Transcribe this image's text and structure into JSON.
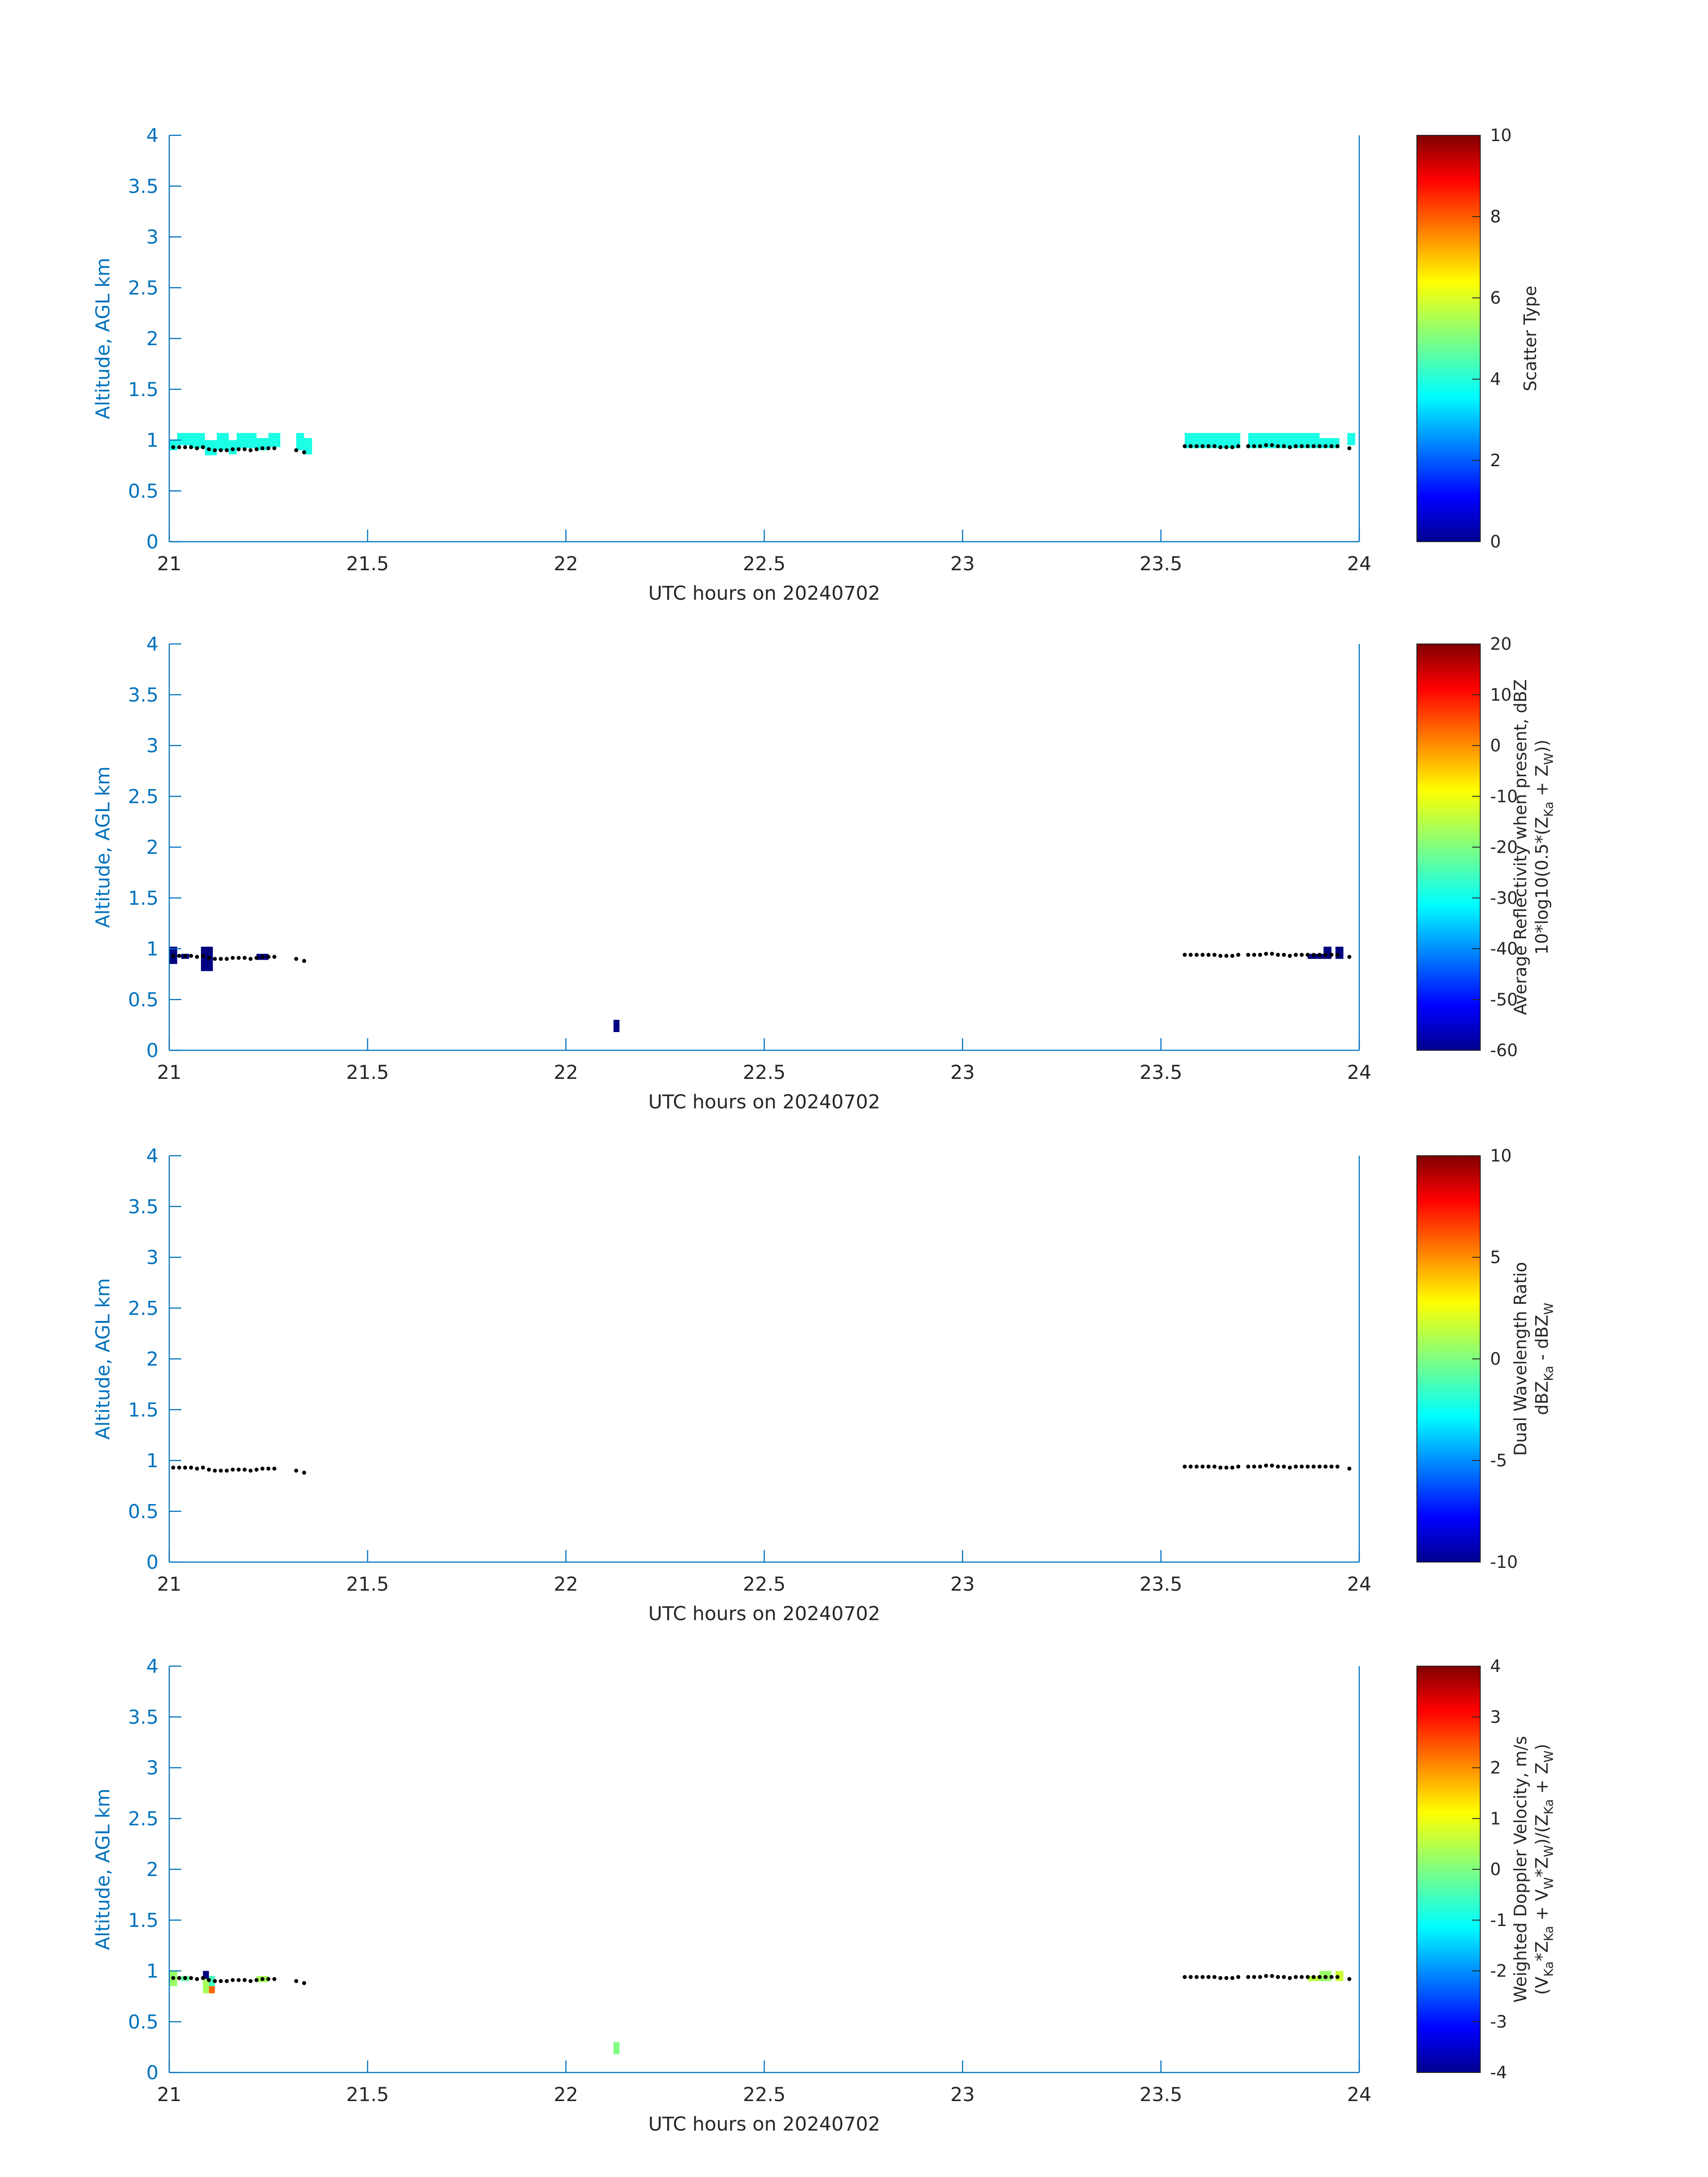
{
  "colors": {
    "axis": "#0072bd",
    "ground_line": "#000000",
    "colorbar_tick_text": "#262626"
  },
  "chart_data": [
    {
      "type": "heatmap",
      "xlabel": "UTC hours on 20240702",
      "ylabel": "Altitude, AGL km",
      "xlim": [
        21,
        24
      ],
      "ylim": [
        0,
        4
      ],
      "xticks": [
        21,
        21.5,
        22,
        22.5,
        23,
        23.5,
        24
      ],
      "yticks": [
        0,
        0.5,
        1,
        1.5,
        2,
        2.5,
        3,
        3.5,
        4
      ],
      "colormap": "jet",
      "colorbar": {
        "label_lines": [
          "Scatter Type"
        ],
        "clim": [
          0,
          10
        ],
        "ticks": [
          0,
          2,
          4,
          6,
          8,
          10
        ]
      },
      "cells": [
        {
          "x0": 21.0,
          "x1": 21.02,
          "y0": 0.9,
          "y1": 1.0,
          "v": 4
        },
        {
          "x0": 21.02,
          "x1": 21.05,
          "y0": 0.95,
          "y1": 1.07,
          "v": 4
        },
        {
          "x0": 21.05,
          "x1": 21.09,
          "y0": 0.92,
          "y1": 1.07,
          "v": 4
        },
        {
          "x0": 21.09,
          "x1": 21.12,
          "y0": 0.85,
          "y1": 1.0,
          "v": 4
        },
        {
          "x0": 21.12,
          "x1": 21.15,
          "y0": 0.9,
          "y1": 1.07,
          "v": 4
        },
        {
          "x0": 21.15,
          "x1": 21.17,
          "y0": 0.86,
          "y1": 1.0,
          "v": 4
        },
        {
          "x0": 21.17,
          "x1": 21.22,
          "y0": 0.92,
          "y1": 1.07,
          "v": 4
        },
        {
          "x0": 21.22,
          "x1": 21.25,
          "y0": 0.9,
          "y1": 1.02,
          "v": 4
        },
        {
          "x0": 21.25,
          "x1": 21.28,
          "y0": 0.93,
          "y1": 1.07,
          "v": 4
        },
        {
          "x0": 21.32,
          "x1": 21.34,
          "y0": 0.9,
          "y1": 1.07,
          "v": 4
        },
        {
          "x0": 21.34,
          "x1": 21.36,
          "y0": 0.86,
          "y1": 1.02,
          "v": 4
        },
        {
          "x0": 23.56,
          "x1": 23.7,
          "y0": 0.92,
          "y1": 1.07,
          "v": 4
        },
        {
          "x0": 23.72,
          "x1": 23.9,
          "y0": 0.92,
          "y1": 1.07,
          "v": 4
        },
        {
          "x0": 23.9,
          "x1": 23.95,
          "y0": 0.92,
          "y1": 1.02,
          "v": 4
        },
        {
          "x0": 23.97,
          "x1": 23.99,
          "y0": 0.95,
          "y1": 1.07,
          "v": 4
        }
      ]
    },
    {
      "type": "heatmap",
      "xlabel": "UTC hours on 20240702",
      "ylabel": "Altitude, AGL km",
      "xlim": [
        21,
        24
      ],
      "ylim": [
        0,
        4
      ],
      "xticks": [
        21,
        21.5,
        22,
        22.5,
        23,
        23.5,
        24
      ],
      "yticks": [
        0,
        0.5,
        1,
        1.5,
        2,
        2.5,
        3,
        3.5,
        4
      ],
      "colormap": "jet",
      "colorbar": {
        "label_lines": [
          "Average Reflectivity when present, dBZ",
          "10*log10(0.5*(Z_Ka + Z_W))"
        ],
        "clim": [
          -60,
          20
        ],
        "ticks": [
          -60,
          -50,
          -40,
          -30,
          -20,
          -10,
          0,
          10,
          20
        ]
      },
      "cells": [
        {
          "x0": 21.0,
          "x1": 21.02,
          "y0": 0.85,
          "y1": 1.02,
          "v": -60
        },
        {
          "x0": 21.03,
          "x1": 21.05,
          "y0": 0.9,
          "y1": 0.95,
          "v": -60
        },
        {
          "x0": 21.08,
          "x1": 21.11,
          "y0": 0.78,
          "y1": 1.02,
          "v": -60
        },
        {
          "x0": 21.22,
          "x1": 21.25,
          "y0": 0.89,
          "y1": 0.95,
          "v": -60
        },
        {
          "x0": 22.12,
          "x1": 22.135,
          "y0": 0.18,
          "y1": 0.3,
          "v": -60
        },
        {
          "x0": 23.87,
          "x1": 23.91,
          "y0": 0.9,
          "y1": 0.95,
          "v": -60
        },
        {
          "x0": 23.91,
          "x1": 23.93,
          "y0": 0.9,
          "y1": 1.02,
          "v": -60
        },
        {
          "x0": 23.94,
          "x1": 23.96,
          "y0": 0.9,
          "y1": 1.02,
          "v": -60
        }
      ]
    },
    {
      "type": "heatmap",
      "xlabel": "UTC hours on 20240702",
      "ylabel": "Altitude, AGL km",
      "xlim": [
        21,
        24
      ],
      "ylim": [
        0,
        4
      ],
      "xticks": [
        21,
        21.5,
        22,
        22.5,
        23,
        23.5,
        24
      ],
      "yticks": [
        0,
        0.5,
        1,
        1.5,
        2,
        2.5,
        3,
        3.5,
        4
      ],
      "colormap": "jet",
      "colorbar": {
        "label_lines": [
          "Dual Wavelength Ratio",
          "dBZ_Ka - dBZ_W"
        ],
        "clim": [
          -10,
          10
        ],
        "ticks": [
          -10,
          -5,
          0,
          5,
          10
        ]
      },
      "cells": []
    },
    {
      "type": "heatmap",
      "xlabel": "UTC hours on 20240702",
      "ylabel": "Altitude, AGL km",
      "xlim": [
        21,
        24
      ],
      "ylim": [
        0,
        4
      ],
      "xticks": [
        21,
        21.5,
        22,
        22.5,
        23,
        23.5,
        24
      ],
      "yticks": [
        0,
        0.5,
        1,
        1.5,
        2,
        2.5,
        3,
        3.5,
        4
      ],
      "colormap": "jet",
      "colorbar": {
        "label_lines": [
          "Weighted Doppler Velocity, m/s",
          "(V_Ka*Z_Ka + V_W*Z_W)/(Z_Ka + Z_W)"
        ],
        "clim": [
          -4,
          4
        ],
        "ticks": [
          -4,
          -3,
          -2,
          -1,
          0,
          1,
          2,
          3,
          4
        ]
      },
      "cells": [
        {
          "x0": 21.0,
          "x1": 21.02,
          "y0": 0.85,
          "y1": 1.0,
          "v": 0.2
        },
        {
          "x0": 21.03,
          "x1": 21.05,
          "y0": 0.9,
          "y1": 0.95,
          "v": -0.3
        },
        {
          "x0": 21.085,
          "x1": 21.1,
          "y0": 0.92,
          "y1": 1.0,
          "v": -4
        },
        {
          "x0": 21.085,
          "x1": 21.1,
          "y0": 0.78,
          "y1": 0.92,
          "v": 0.3
        },
        {
          "x0": 21.1,
          "x1": 21.115,
          "y0": 0.78,
          "y1": 0.85,
          "v": 2.2
        },
        {
          "x0": 21.1,
          "x1": 21.115,
          "y0": 0.85,
          "y1": 0.95,
          "v": -0.5
        },
        {
          "x0": 21.22,
          "x1": 21.25,
          "y0": 0.89,
          "y1": 0.95,
          "v": 0.3
        },
        {
          "x0": 22.12,
          "x1": 22.135,
          "y0": 0.18,
          "y1": 0.3,
          "v": 0.0
        },
        {
          "x0": 23.87,
          "x1": 23.9,
          "y0": 0.9,
          "y1": 0.95,
          "v": 0.5
        },
        {
          "x0": 23.9,
          "x1": 23.93,
          "y0": 0.9,
          "y1": 1.0,
          "v": 0.2
        },
        {
          "x0": 23.94,
          "x1": 23.96,
          "y0": 0.9,
          "y1": 1.0,
          "v": 0.6
        }
      ]
    }
  ],
  "ground_dots": [
    {
      "x": 21.01,
      "y": 0.93
    },
    {
      "x": 21.025,
      "y": 0.93
    },
    {
      "x": 21.04,
      "y": 0.93
    },
    {
      "x": 21.055,
      "y": 0.93
    },
    {
      "x": 21.07,
      "y": 0.92
    },
    {
      "x": 21.085,
      "y": 0.93
    },
    {
      "x": 21.1,
      "y": 0.91
    },
    {
      "x": 21.115,
      "y": 0.9
    },
    {
      "x": 21.13,
      "y": 0.9
    },
    {
      "x": 21.145,
      "y": 0.9
    },
    {
      "x": 21.16,
      "y": 0.91
    },
    {
      "x": 21.175,
      "y": 0.91
    },
    {
      "x": 21.19,
      "y": 0.91
    },
    {
      "x": 21.205,
      "y": 0.9
    },
    {
      "x": 21.22,
      "y": 0.91
    },
    {
      "x": 21.235,
      "y": 0.92
    },
    {
      "x": 21.25,
      "y": 0.92
    },
    {
      "x": 21.265,
      "y": 0.92
    },
    {
      "x": 21.32,
      "y": 0.9
    },
    {
      "x": 21.34,
      "y": 0.88
    },
    {
      "x": 23.56,
      "y": 0.94
    },
    {
      "x": 23.575,
      "y": 0.94
    },
    {
      "x": 23.59,
      "y": 0.94
    },
    {
      "x": 23.605,
      "y": 0.94
    },
    {
      "x": 23.62,
      "y": 0.94
    },
    {
      "x": 23.635,
      "y": 0.94
    },
    {
      "x": 23.65,
      "y": 0.93
    },
    {
      "x": 23.665,
      "y": 0.93
    },
    {
      "x": 23.68,
      "y": 0.93
    },
    {
      "x": 23.695,
      "y": 0.94
    },
    {
      "x": 23.72,
      "y": 0.94
    },
    {
      "x": 23.735,
      "y": 0.94
    },
    {
      "x": 23.75,
      "y": 0.94
    },
    {
      "x": 23.765,
      "y": 0.95
    },
    {
      "x": 23.78,
      "y": 0.95
    },
    {
      "x": 23.795,
      "y": 0.94
    },
    {
      "x": 23.81,
      "y": 0.94
    },
    {
      "x": 23.825,
      "y": 0.93
    },
    {
      "x": 23.84,
      "y": 0.94
    },
    {
      "x": 23.855,
      "y": 0.94
    },
    {
      "x": 23.87,
      "y": 0.94
    },
    {
      "x": 23.885,
      "y": 0.94
    },
    {
      "x": 23.9,
      "y": 0.94
    },
    {
      "x": 23.915,
      "y": 0.94
    },
    {
      "x": 23.93,
      "y": 0.94
    },
    {
      "x": 23.945,
      "y": 0.94
    },
    {
      "x": 23.975,
      "y": 0.92
    }
  ]
}
